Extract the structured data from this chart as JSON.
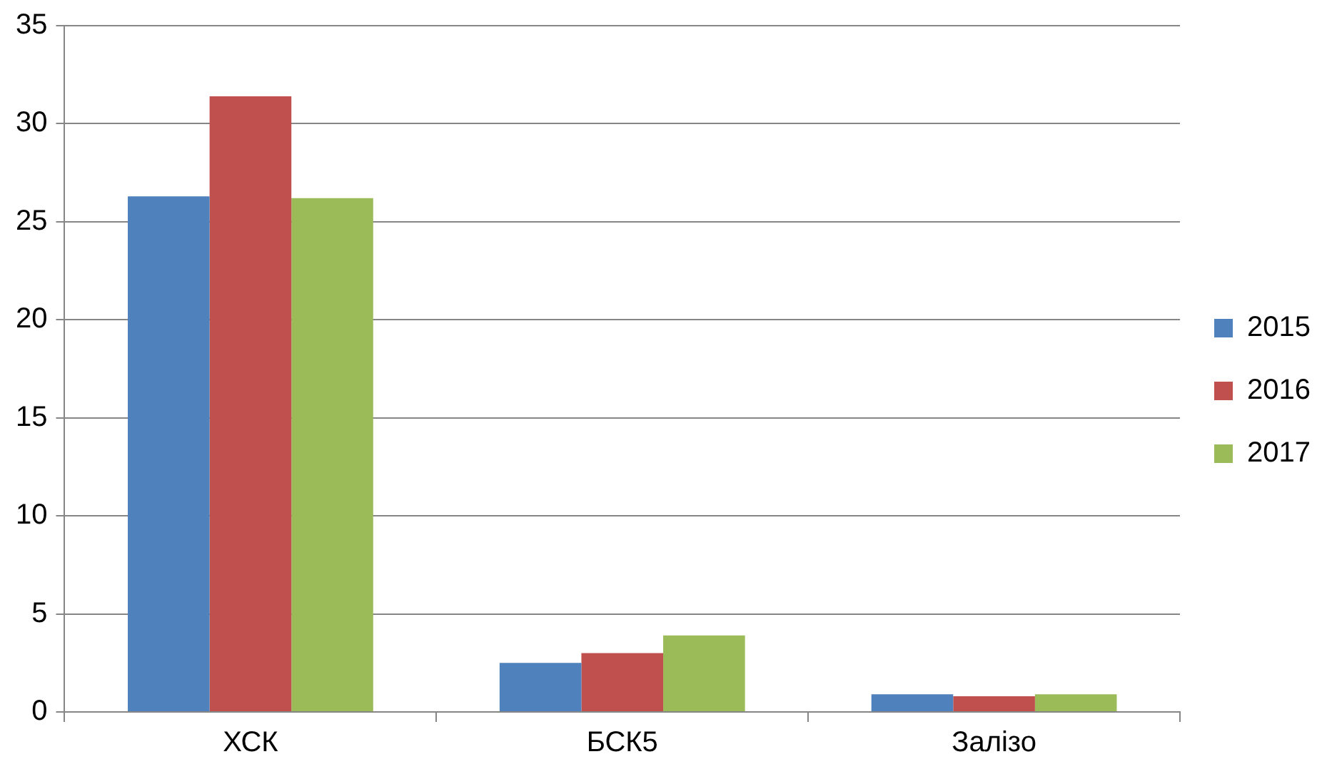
{
  "chart_data": {
    "type": "bar",
    "categories": [
      "ХСК",
      "БСК5",
      "Залізо"
    ],
    "series": [
      {
        "name": "2015",
        "color": "#4f81bd",
        "values": [
          26.3,
          2.5,
          0.9
        ]
      },
      {
        "name": "2016",
        "color": "#c0504d",
        "values": [
          31.4,
          3.0,
          0.8
        ]
      },
      {
        "name": "2017",
        "color": "#9bbb59",
        "values": [
          26.2,
          3.9,
          0.9
        ]
      }
    ],
    "ylim": [
      0,
      35
    ],
    "yticks": [
      0,
      5,
      10,
      15,
      20,
      25,
      30,
      35
    ],
    "grid": "y",
    "legend": "right"
  }
}
